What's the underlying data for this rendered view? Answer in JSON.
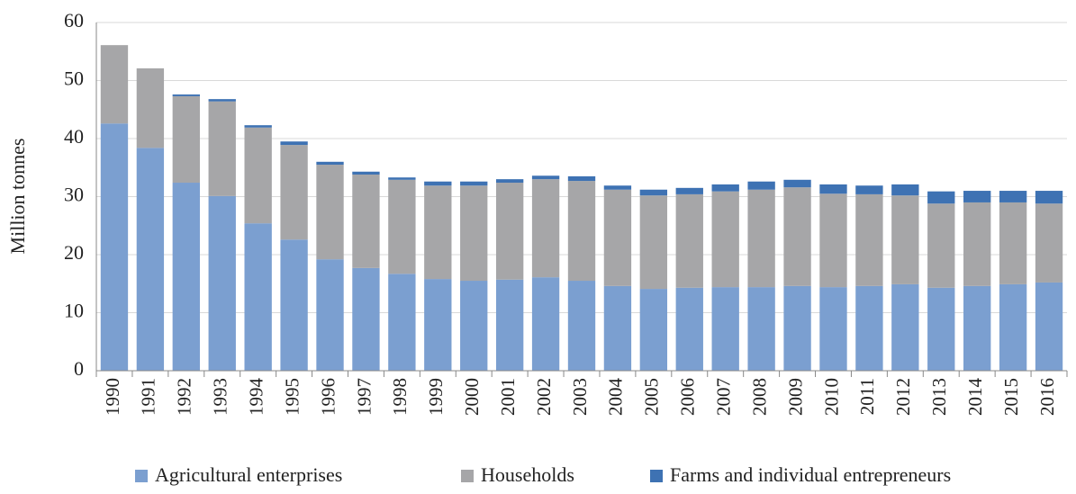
{
  "chart_data": {
    "type": "stacked_bar",
    "y_label": "Million tonnes",
    "categories": [
      "1990",
      "1991",
      "1992",
      "1993",
      "1994",
      "1995",
      "1996",
      "1997",
      "1998",
      "1999",
      "2000",
      "2001",
      "2002",
      "2003",
      "2004",
      "2005",
      "2006",
      "2007",
      "2008",
      "2009",
      "2010",
      "2011",
      "2012",
      "2013",
      "2014",
      "2015",
      "2016"
    ],
    "series": [
      {
        "name": "Agricultural enterprises",
        "color": "#7b9fd0",
        "values": [
          42.6,
          38.4,
          32.4,
          30.1,
          25.4,
          22.6,
          19.2,
          17.7,
          16.7,
          15.8,
          15.5,
          15.7,
          16.1,
          15.5,
          14.6,
          14.1,
          14.3,
          14.4,
          14.4,
          14.6,
          14.4,
          14.6,
          14.9,
          14.3,
          14.6,
          14.9,
          15.2
        ]
      },
      {
        "name": "Households",
        "color": "#a6a6a8",
        "values": [
          13.5,
          13.7,
          14.9,
          16.3,
          16.5,
          16.3,
          16.3,
          16.1,
          16.2,
          16.1,
          16.4,
          16.7,
          16.9,
          17.2,
          16.6,
          16.1,
          16.1,
          16.5,
          16.8,
          17.0,
          16.1,
          15.8,
          15.3,
          14.5,
          14.4,
          14.1,
          13.6
        ]
      },
      {
        "name": "Farms and individual entrepreneurs",
        "color": "#3e72b3",
        "values": [
          0,
          0,
          0.3,
          0.4,
          0.4,
          0.6,
          0.5,
          0.5,
          0.4,
          0.7,
          0.7,
          0.6,
          0.6,
          0.8,
          0.7,
          1.0,
          1.1,
          1.2,
          1.4,
          1.3,
          1.6,
          1.5,
          1.9,
          2.1,
          2.0,
          2.0,
          2.2
        ]
      }
    ],
    "ylim": [
      0,
      60
    ],
    "yticks": [
      0,
      10,
      20,
      30,
      40,
      50,
      60
    ],
    "grid": true,
    "legend": "bottom"
  }
}
